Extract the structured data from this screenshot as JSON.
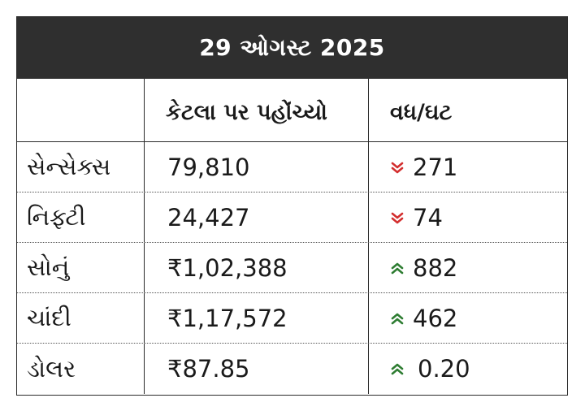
{
  "title": "29 ઓગસ્ટ 2025",
  "headers": [
    "",
    "કેટલા પર પહોંચ્યો",
    "વધ/ઘટ"
  ],
  "colors": {
    "down": "#d32f2f",
    "up": "#2e7d32",
    "title_bg": "#2f2f2f"
  },
  "rows": [
    {
      "name": "સેન્સેક્સ",
      "value": "79,810",
      "change": "271",
      "direction": "down",
      "icon": "double-chevron-down-icon"
    },
    {
      "name": "નિફ્ટી",
      "value": "24,427",
      "change": "74",
      "direction": "down",
      "icon": "double-chevron-down-icon"
    },
    {
      "name": "સોનું",
      "value": "₹1,02,388",
      "change": "882",
      "direction": "up",
      "icon": "double-chevron-up-icon"
    },
    {
      "name": "ચાંદી",
      "value": "₹1,17,572",
      "change": "462",
      "direction": "up",
      "icon": "double-chevron-up-icon"
    },
    {
      "name": "ડોલર",
      "value": "₹87.85",
      "change": "0.20",
      "direction": "up",
      "icon": "double-chevron-up-icon"
    }
  ]
}
